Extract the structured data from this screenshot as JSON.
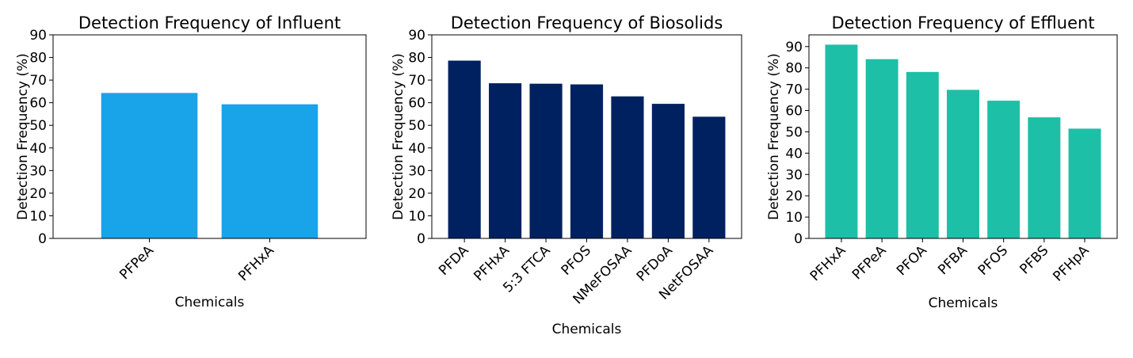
{
  "chart_data": [
    {
      "type": "bar",
      "title": "Detection Frequency of Influent",
      "xlabel": "Chemicals",
      "ylabel": "Detection Frequency (%)",
      "categories": [
        "PFPeA",
        "PFHxA"
      ],
      "values": [
        64.3,
        59.3
      ],
      "ylim": [
        0,
        90
      ],
      "yticks": [
        0,
        10,
        20,
        30,
        40,
        50,
        60,
        70,
        80,
        90
      ],
      "color": "#19a3e8",
      "grid": false
    },
    {
      "type": "bar",
      "title": "Detection Frequency of Biosolids",
      "xlabel": "Chemicals",
      "ylabel": "Detection Frequency (%)",
      "categories": [
        "PFDA",
        "PFHxA",
        "5:3 FTCA",
        "PFOS",
        "NMeFOSAA",
        "PFDoA",
        "NetFOSAA"
      ],
      "values": [
        78.6,
        68.6,
        68.4,
        68.1,
        62.8,
        59.5,
        53.8
      ],
      "ylim": [
        0,
        90
      ],
      "yticks": [
        0,
        10,
        20,
        30,
        40,
        50,
        60,
        70,
        80,
        90
      ],
      "color": "#00215f",
      "grid": false
    },
    {
      "type": "bar",
      "title": "Detection Frequency of Effluent",
      "xlabel": "Chemicals",
      "ylabel": "Detection Frequency (%)",
      "categories": [
        "PFHxA",
        "PFPeA",
        "PFOA",
        "PFBA",
        "PFOS",
        "PFBS",
        "PFHpA"
      ],
      "values": [
        90.9,
        84.1,
        78.1,
        69.7,
        64.6,
        56.8,
        51.5
      ],
      "ylim": [
        0,
        95.5
      ],
      "yticks": [
        0,
        10,
        20,
        30,
        40,
        50,
        60,
        70,
        80,
        90
      ],
      "color": "#1dbfa6",
      "grid": false
    }
  ]
}
